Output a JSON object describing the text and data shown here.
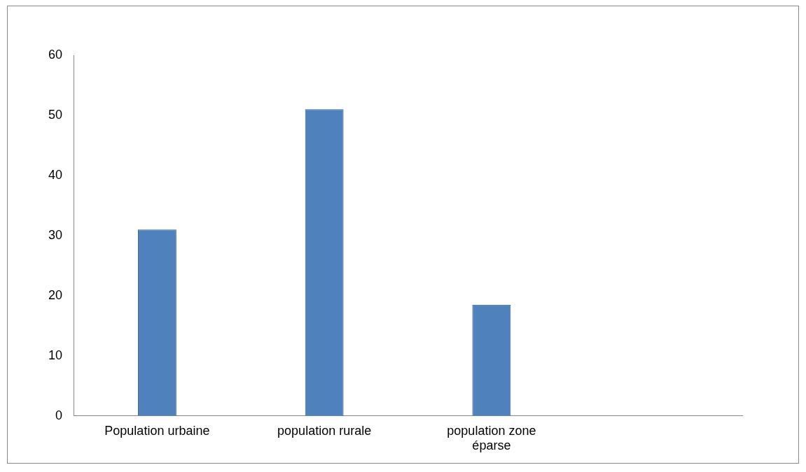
{
  "chart_data": {
    "type": "bar",
    "categories": [
      "Population urbaine",
      "population rurale",
      "population zone éparse",
      null
    ],
    "values": [
      31,
      51,
      18.5,
      null
    ],
    "color": "#4f81bd",
    "ylim": [
      0,
      60
    ],
    "yticks": [
      0,
      10,
      20,
      30,
      40,
      50,
      60
    ],
    "grid": false,
    "legend": false
  }
}
